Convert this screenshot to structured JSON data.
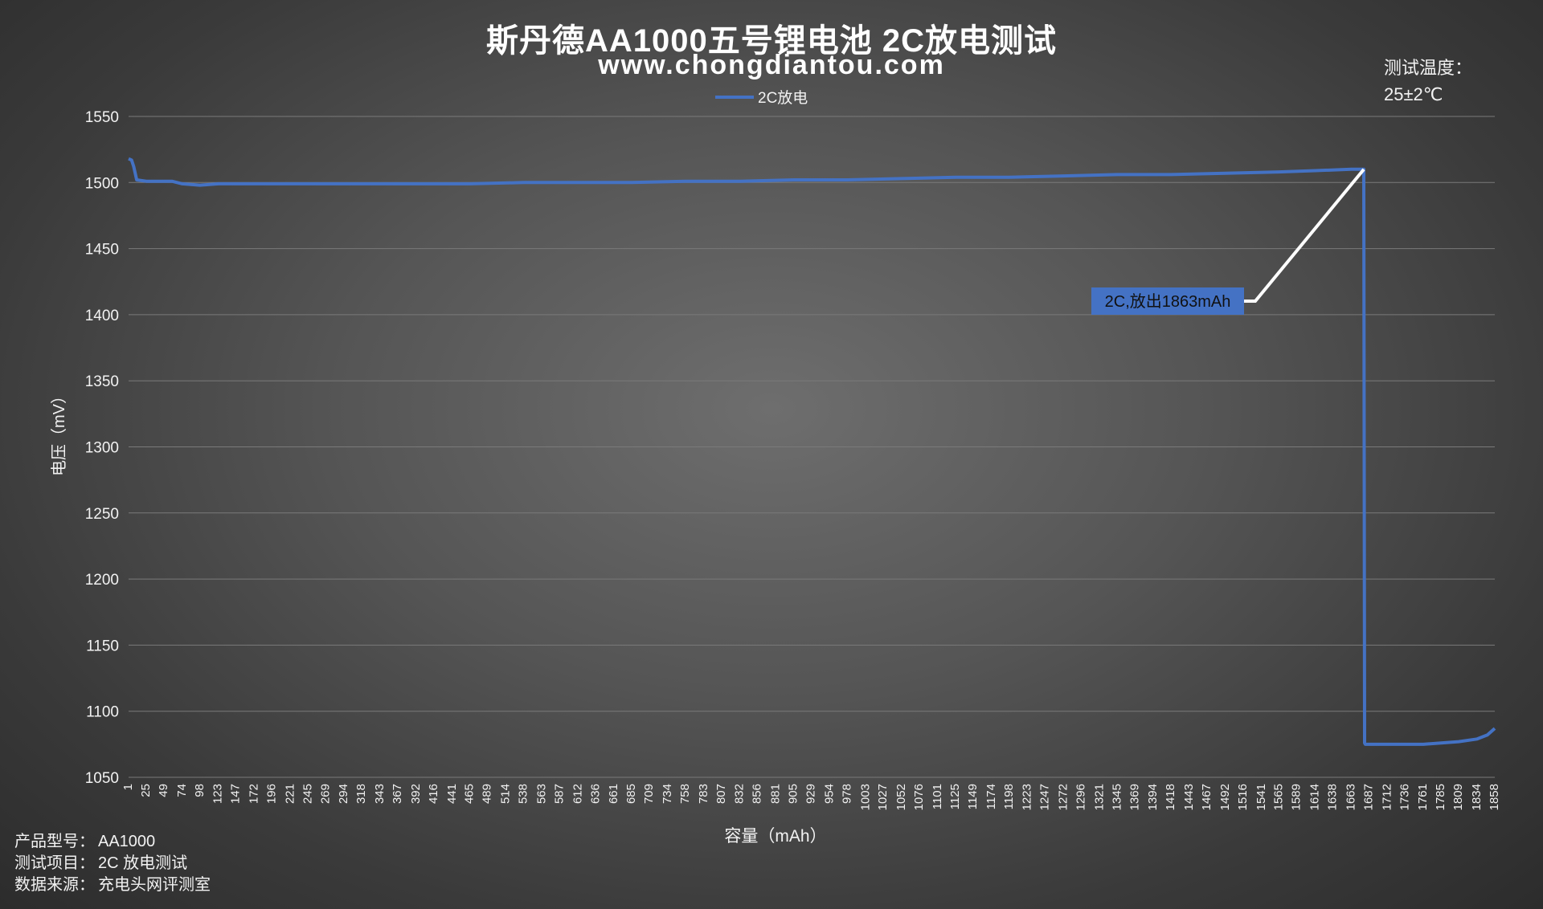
{
  "title": "斯丹德AA1000五号锂电池 2C放电测试",
  "subtitle": "www.chongdiantou.com",
  "temperature": {
    "label": "测试温度：",
    "value": "25±2℃"
  },
  "info": [
    {
      "label": "产品型号：",
      "value": "AA1000"
    },
    {
      "label": "测试项目：",
      "value": "2C 放电测试"
    },
    {
      "label": "数据来源：",
      "value": "充电头网评测室"
    }
  ],
  "colors": {
    "series": "#4472c4",
    "grid": "#7a7a7a",
    "annotation_bg": "#4472c4",
    "annotation_line": "#ffffff"
  },
  "chart_data": {
    "type": "line",
    "xlabel": "容量（mAh）",
    "ylabel": "电压（mV）",
    "ylim": [
      1050,
      1550
    ],
    "yticks": [
      1050,
      1100,
      1150,
      1200,
      1250,
      1300,
      1350,
      1400,
      1450,
      1500,
      1550
    ],
    "xlim": [
      1,
      1858
    ],
    "xticks": [
      1,
      25,
      49,
      74,
      98,
      123,
      147,
      172,
      196,
      221,
      245,
      269,
      294,
      318,
      343,
      367,
      392,
      416,
      441,
      465,
      489,
      514,
      538,
      563,
      587,
      612,
      636,
      661,
      685,
      709,
      734,
      758,
      783,
      807,
      832,
      856,
      881,
      905,
      929,
      954,
      978,
      1003,
      1027,
      1052,
      1076,
      1101,
      1125,
      1149,
      1174,
      1198,
      1223,
      1247,
      1272,
      1296,
      1321,
      1345,
      1369,
      1394,
      1418,
      1443,
      1467,
      1492,
      1516,
      1541,
      1565,
      1589,
      1614,
      1638,
      1663,
      1687,
      1712,
      1736,
      1761,
      1785,
      1809,
      1834,
      1858
    ],
    "grid": true,
    "legend_position": "top-center",
    "series": [
      {
        "name": "2C放电",
        "x": [
          1,
          5,
          8,
          12,
          25,
          49,
          60,
          74,
          98,
          123,
          172,
          245,
          318,
          392,
          465,
          538,
          612,
          685,
          758,
          832,
          905,
          978,
          1052,
          1125,
          1198,
          1272,
          1345,
          1418,
          1492,
          1565,
          1614,
          1663,
          1680,
          1681,
          1682,
          1700,
          1736,
          1761,
          1785,
          1809,
          1834,
          1848,
          1858
        ],
        "y": [
          1518,
          1517,
          1512,
          1502,
          1501,
          1501,
          1501,
          1499,
          1498,
          1499,
          1499,
          1499,
          1499,
          1499,
          1499,
          1500,
          1500,
          1500,
          1501,
          1501,
          1502,
          1502,
          1503,
          1504,
          1504,
          1505,
          1506,
          1506,
          1507,
          1508,
          1509,
          1510,
          1510,
          1076,
          1075,
          1075,
          1075,
          1075,
          1076,
          1077,
          1079,
          1082,
          1087
        ]
      }
    ],
    "annotations": [
      {
        "text": "2C,放出1863mAh",
        "points_to": {
          "x": 1680,
          "y": 1510
        }
      }
    ]
  }
}
